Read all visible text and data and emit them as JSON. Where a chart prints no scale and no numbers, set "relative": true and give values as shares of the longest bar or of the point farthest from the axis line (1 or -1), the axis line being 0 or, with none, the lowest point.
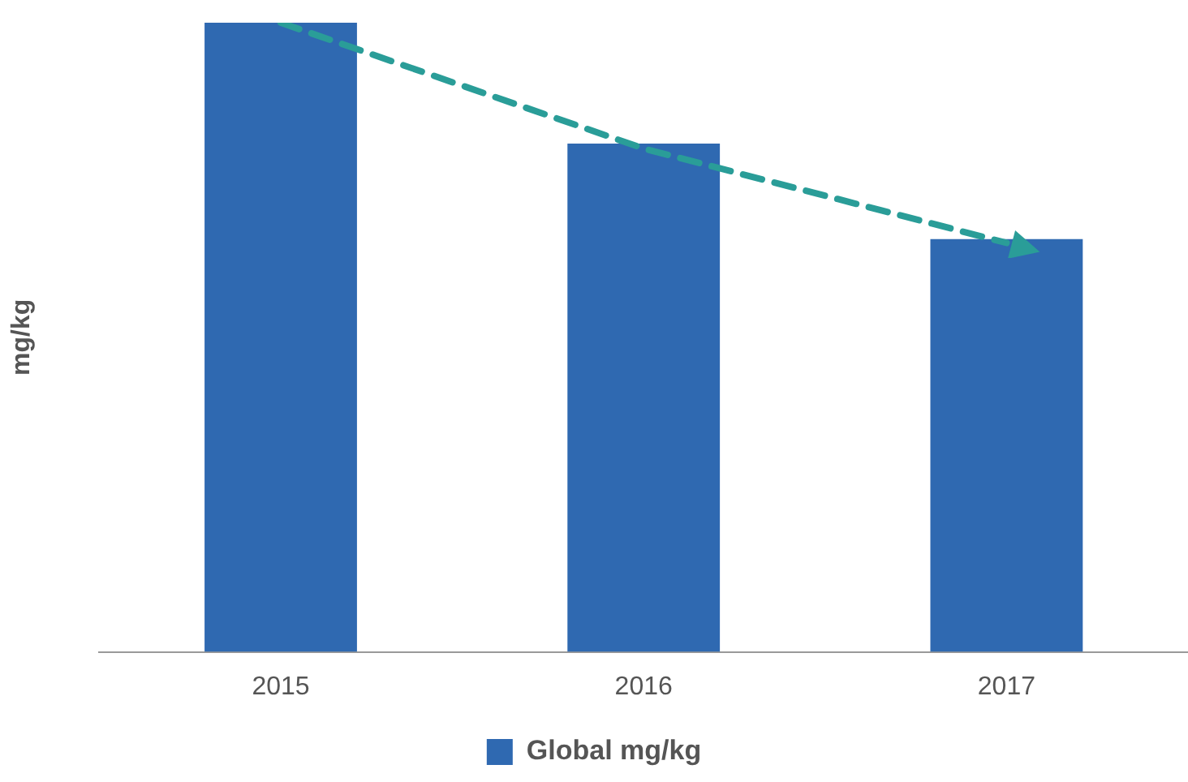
{
  "chart_data": {
    "type": "bar",
    "relative": true,
    "ylabel": "mg/kg",
    "categories": [
      "2015",
      "2016",
      "2017"
    ],
    "legend": "bottom",
    "grid": false,
    "series": [
      {
        "name": "Global mg/kg",
        "color": "#2f69b1",
        "values": [
          1,
          0.808,
          0.656
        ]
      },
      {
        "type": "line",
        "color": "#2a9d98",
        "line_style": "dashed",
        "marker": "none",
        "values": [
          1.0,
          0.8,
          0.65
        ]
      }
    ]
  }
}
